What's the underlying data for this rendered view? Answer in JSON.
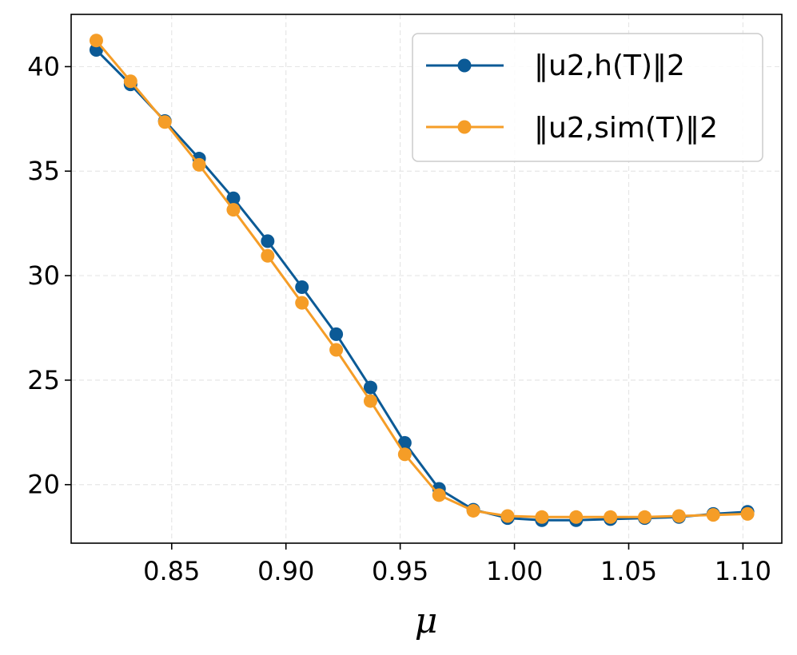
{
  "chart_data": {
    "type": "line",
    "xlabel": "μ",
    "ylabel": "",
    "xlim": [
      0.806,
      1.117
    ],
    "ylim": [
      17.2,
      42.5
    ],
    "xticks": [
      0.85,
      0.9,
      0.95,
      1.0,
      1.05,
      1.1
    ],
    "xtick_labels": [
      "0.85",
      "0.90",
      "0.95",
      "1.00",
      "1.05",
      "1.10"
    ],
    "yticks": [
      20,
      25,
      30,
      35,
      40
    ],
    "ytick_labels": [
      "20",
      "25",
      "30",
      "35",
      "40"
    ],
    "grid": true,
    "legend_position": "top-right",
    "x": [
      0.817,
      0.832,
      0.847,
      0.862,
      0.877,
      0.892,
      0.907,
      0.922,
      0.937,
      0.952,
      0.967,
      0.982,
      0.997,
      1.012,
      1.027,
      1.042,
      1.057,
      1.072,
      1.087,
      1.102
    ],
    "series": [
      {
        "name": "‖u2,h(T)‖2",
        "color": "#0b5a96",
        "values": [
          40.8,
          39.15,
          37.4,
          35.6,
          33.7,
          31.65,
          29.45,
          27.2,
          24.65,
          22.0,
          19.8,
          18.8,
          18.4,
          18.3,
          18.3,
          18.35,
          18.4,
          18.45,
          18.6,
          18.7
        ]
      },
      {
        "name": "‖u2,sim(T)‖2",
        "color": "#f59d27",
        "values": [
          41.25,
          39.3,
          37.35,
          35.3,
          33.15,
          30.95,
          28.7,
          26.45,
          24.0,
          21.45,
          19.5,
          18.75,
          18.5,
          18.45,
          18.45,
          18.45,
          18.45,
          18.5,
          18.55,
          18.6
        ]
      }
    ]
  }
}
